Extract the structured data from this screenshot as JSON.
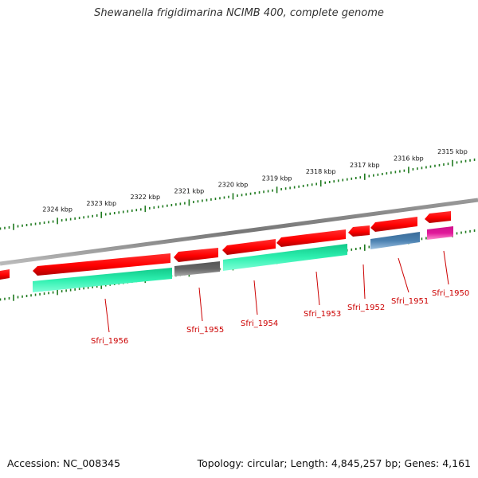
{
  "title": "Shewanella frigidimarina NCIMB 400, complete genome",
  "footer": {
    "accession": "Accession: NC_008345",
    "summary": "Topology: circular; Length: 4,845,257 bp; Genes: 4,161"
  },
  "scale": {
    "unit_label": "kbp",
    "ticks": [
      {
        "kbp": 2315,
        "label": "2315 kbp"
      },
      {
        "kbp": 2316,
        "label": "2316 kbp"
      },
      {
        "kbp": 2317,
        "label": "2317 kbp"
      },
      {
        "kbp": 2318,
        "label": "2318 kbp"
      },
      {
        "kbp": 2319,
        "label": "2319 kbp"
      },
      {
        "kbp": 2320,
        "label": "2320 kbp"
      },
      {
        "kbp": 2321,
        "label": "2321 kbp"
      },
      {
        "kbp": 2322,
        "label": "2322 kbp"
      },
      {
        "kbp": 2323,
        "label": "2323 kbp"
      },
      {
        "kbp": 2324,
        "label": "2324 kbp"
      }
    ]
  },
  "colors": {
    "backbone": "#888888",
    "tick": "#1f7a1f",
    "cds": "#ff0000",
    "gene_teal": "#22e8a8",
    "gene_grey": "#666666",
    "gene_blue": "#4a80b0",
    "gene_magenta": "#e0199a",
    "label": "#cc0000"
  },
  "genes": [
    {
      "label": "Sfri_1956",
      "color": "gene_teal"
    },
    {
      "label": "Sfri_1955",
      "color": "gene_grey"
    },
    {
      "label": "Sfri_1954",
      "color": "gene_teal"
    },
    {
      "label": "Sfri_1953",
      "color": "gene_teal"
    },
    {
      "label": "Sfri_1952",
      "color": "cds"
    },
    {
      "label": "Sfri_1951",
      "color": "gene_blue"
    },
    {
      "label": "Sfri_1950",
      "color": "gene_magenta"
    }
  ]
}
